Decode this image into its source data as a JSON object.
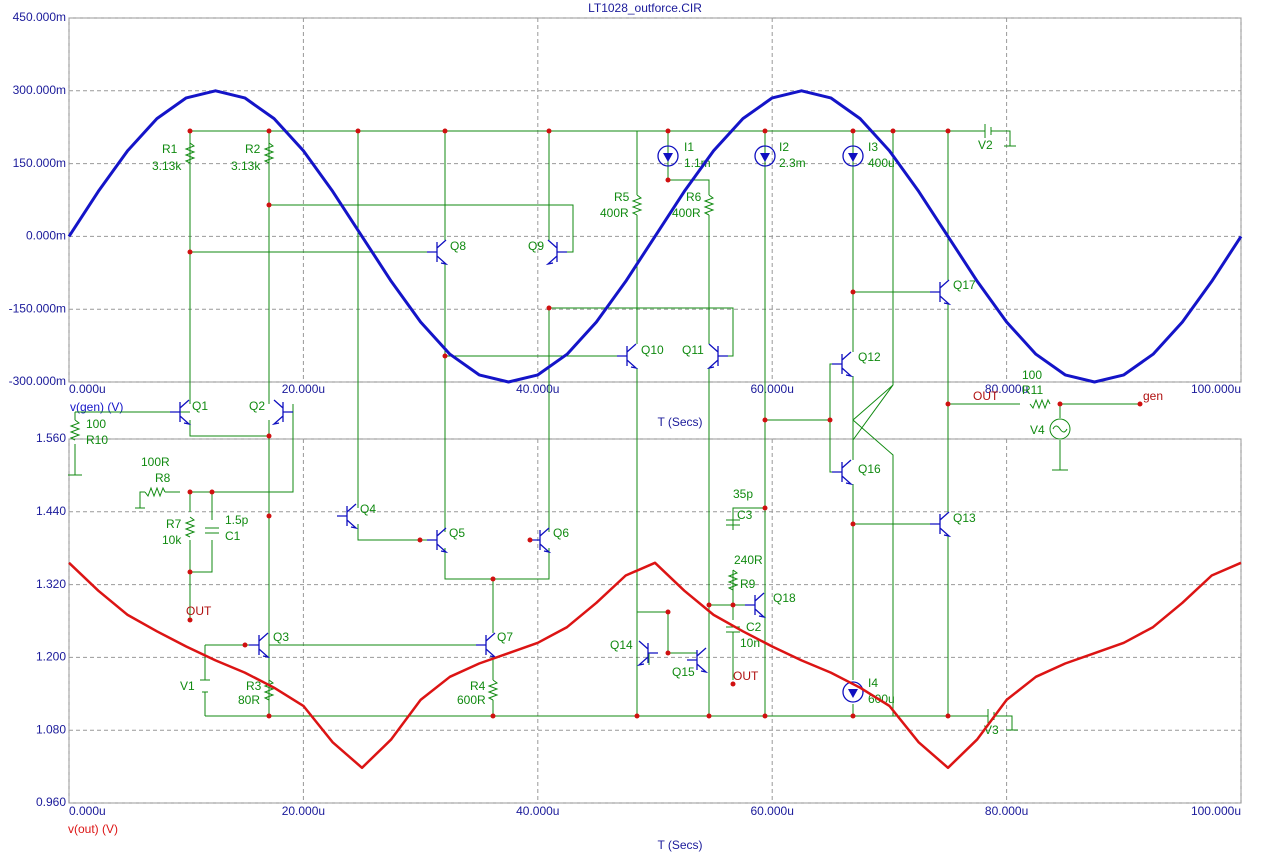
{
  "chart_data": [
    {
      "type": "line",
      "title": "LT1028_outforce.CIR",
      "x_label": "T (Secs)",
      "x": [
        0,
        2.5,
        5,
        7.5,
        10,
        12.5,
        15,
        17.5,
        20,
        22.5,
        25,
        27.5,
        30,
        32.5,
        35,
        37.5,
        40,
        42.5,
        45,
        47.5,
        50,
        52.5,
        55,
        57.5,
        60,
        62.5,
        65,
        67.5,
        70,
        72.5,
        75,
        77.5,
        80,
        82.5,
        85,
        87.5,
        90,
        92.5,
        95,
        97.5,
        100
      ],
      "series": [
        {
          "name": "v(gen) (V)",
          "color": "#1414c8",
          "values": [
            0,
            92.7,
            176.3,
            242.7,
            285.3,
            300,
            285.3,
            242.7,
            176.3,
            92.7,
            0,
            -92.7,
            -176.3,
            -242.7,
            -285.3,
            -300,
            -285.3,
            -242.7,
            -176.3,
            -92.7,
            0,
            92.7,
            176.3,
            242.7,
            285.3,
            300,
            285.3,
            242.7,
            176.3,
            92.7,
            0,
            -92.7,
            -176.3,
            -242.7,
            -285.3,
            -300,
            -285.3,
            -242.7,
            -176.3,
            -92.7,
            0
          ]
        }
      ],
      "xlim": [
        0,
        100
      ],
      "ylim": [
        -300,
        450
      ],
      "xticks": [
        {
          "value": 0,
          "label": "0.000u"
        },
        {
          "value": 20,
          "label": "20.000u"
        },
        {
          "value": 40,
          "label": "40.000u"
        },
        {
          "value": 60,
          "label": "60.000u"
        },
        {
          "value": 80,
          "label": "80.000u"
        },
        {
          "value": 100,
          "label": "100.000u"
        }
      ],
      "yticks": [
        {
          "value": -300,
          "label": "-300.000m"
        },
        {
          "value": -150,
          "label": "-150.000m"
        },
        {
          "value": 0,
          "label": "0.000m"
        },
        {
          "value": 150,
          "label": "150.000m"
        },
        {
          "value": 300,
          "label": "300.000m"
        },
        {
          "value": 450,
          "label": "450.000m"
        }
      ],
      "grid": true
    },
    {
      "type": "line",
      "x_label": "T (Secs)",
      "x": [
        0,
        2.5,
        5,
        7.5,
        10,
        12.5,
        15,
        17.5,
        20,
        22.5,
        25,
        27.5,
        30,
        32.5,
        35,
        37.5,
        40,
        42.5,
        45,
        47.5,
        50,
        52.5,
        55,
        57.5,
        60,
        62.5,
        65,
        67.5,
        70,
        72.5,
        75,
        77.5,
        80,
        82.5,
        85,
        87.5,
        90,
        92.5,
        95,
        97.5,
        100
      ],
      "series": [
        {
          "name": "v(out) (V)",
          "color": "#dc1414",
          "values": [
            1.356,
            1.31,
            1.27,
            1.243,
            1.218,
            1.195,
            1.175,
            1.15,
            1.12,
            1.06,
            1.018,
            1.065,
            1.13,
            1.168,
            1.19,
            1.207,
            1.224,
            1.25,
            1.29,
            1.335,
            1.356,
            1.31,
            1.27,
            1.243,
            1.218,
            1.195,
            1.175,
            1.15,
            1.12,
            1.06,
            1.018,
            1.065,
            1.13,
            1.168,
            1.19,
            1.207,
            1.224,
            1.25,
            1.29,
            1.335,
            1.356
          ]
        }
      ],
      "xlim": [
        0,
        100
      ],
      "ylim": [
        0.96,
        1.56
      ],
      "xticks": [
        {
          "value": 0,
          "label": "0.000u"
        },
        {
          "value": 20,
          "label": "20.000u"
        },
        {
          "value": 40,
          "label": "40.000u"
        },
        {
          "value": 60,
          "label": "60.000u"
        },
        {
          "value": 80,
          "label": "80.000u"
        },
        {
          "value": 100,
          "label": "100.000u"
        }
      ],
      "yticks": [
        {
          "value": 0.96,
          "label": "0.960"
        },
        {
          "value": 1.08,
          "label": "1.080"
        },
        {
          "value": 1.2,
          "label": "1.200"
        },
        {
          "value": 1.32,
          "label": "1.320"
        },
        {
          "value": 1.44,
          "label": "1.440"
        },
        {
          "value": 1.56,
          "label": "1.560"
        }
      ],
      "grid": true
    }
  ],
  "schematic": {
    "labels": [
      "R1",
      "3.13k",
      "R2",
      "3.13k",
      "Q8",
      "Q9",
      "I1",
      "1.1m",
      "I2",
      "2.3m",
      "I3",
      "400u",
      "V2",
      "R5",
      "400R",
      "R6",
      "400R",
      "Q17",
      "Q10",
      "Q11",
      "Q12",
      "OUT",
      "100",
      "R11",
      "gen",
      "V4",
      "Q1",
      "Q2",
      "100",
      "R10",
      "100R",
      "R8",
      "Q16",
      "35p",
      "C3",
      "Q4",
      "Q13",
      "R7",
      "10k",
      "1.5p",
      "C1",
      "Q5",
      "Q6",
      "240R",
      "R9",
      "Q18",
      "OUT",
      "C2",
      "10n",
      "Q3",
      "Q7",
      "Q14",
      "Q15",
      "OUT",
      "V1",
      "R3",
      "80R",
      "R4",
      "600R",
      "I4",
      "600u",
      "V3"
    ]
  }
}
